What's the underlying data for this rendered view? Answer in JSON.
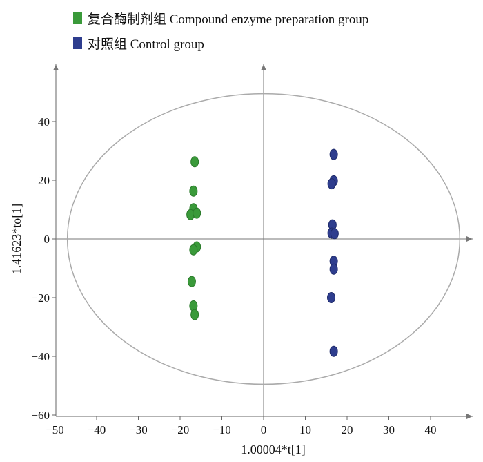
{
  "chart_data": {
    "type": "scatter",
    "title": "",
    "xlabel": "1.00004*t[1]",
    "ylabel": "1.41623*to[1]",
    "xlim": [
      -50,
      50
    ],
    "ylim": [
      -60,
      60
    ],
    "xticks": [
      -50,
      -40,
      -30,
      -20,
      -10,
      0,
      10,
      20,
      30,
      40
    ],
    "yticks": [
      -60,
      -40,
      -20,
      0,
      20,
      40
    ],
    "grid": false,
    "legend_position": "top-left",
    "ellipse": {
      "cx": 0,
      "cy": 0,
      "rx": 47,
      "ry": 49.5
    },
    "series": [
      {
        "name": "复合酶制剂组 Compound enzyme preparation group",
        "color": "#3a9a3a",
        "edge": "#2a7a2a",
        "points": [
          [
            -16.5,
            26.3
          ],
          [
            -16.8,
            16.3
          ],
          [
            -16.8,
            10.3
          ],
          [
            -17.5,
            8.3
          ],
          [
            -16.0,
            8.8
          ],
          [
            -16.0,
            -2.7
          ],
          [
            -16.8,
            -3.7
          ],
          [
            -17.2,
            -14.5
          ],
          [
            -16.8,
            -22.8
          ],
          [
            -16.5,
            -25.8
          ]
        ]
      },
      {
        "name": "对照组 Control group",
        "color": "#2e3d8e",
        "edge": "#1e2a6a",
        "points": [
          [
            16.8,
            28.8
          ],
          [
            16.8,
            19.8
          ],
          [
            16.3,
            18.8
          ],
          [
            16.5,
            4.8
          ],
          [
            16.3,
            2.0
          ],
          [
            17.0,
            1.8
          ],
          [
            16.8,
            -7.6
          ],
          [
            16.8,
            -10.3
          ],
          [
            16.2,
            -20.0
          ],
          [
            16.8,
            -38.3
          ]
        ]
      }
    ]
  }
}
